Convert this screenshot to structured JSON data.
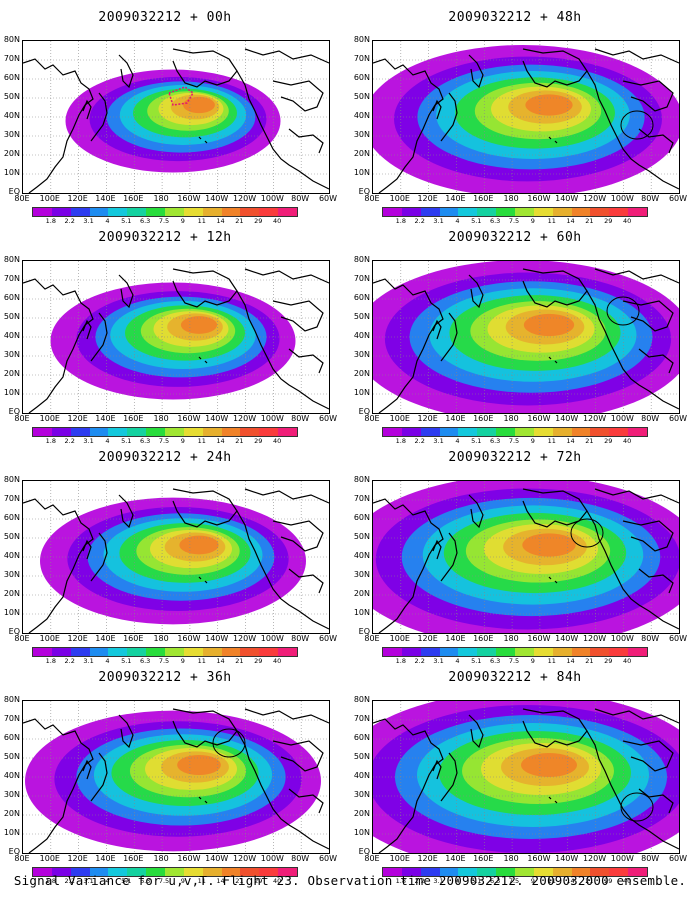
{
  "panels": [
    {
      "title": "2009032212 + 00h",
      "intensity": 0.45
    },
    {
      "title": "2009032212 + 12h",
      "intensity": 0.55
    },
    {
      "title": "2009032212 + 24h",
      "intensity": 0.62
    },
    {
      "title": "2009032212 + 36h",
      "intensity": 0.72
    },
    {
      "title": "2009032212 + 48h",
      "intensity": 0.8
    },
    {
      "title": "2009032212 + 60h",
      "intensity": 0.87
    },
    {
      "title": "2009032212 + 72h",
      "intensity": 0.94
    },
    {
      "title": "2009032212 + 84h",
      "intensity": 1.0
    }
  ],
  "lat_labels": [
    "80N",
    "70N",
    "60N",
    "50N",
    "40N",
    "30N",
    "20N",
    "10N",
    "EQ"
  ],
  "lon_labels": [
    "80E",
    "100E",
    "120E",
    "140E",
    "160E",
    "180",
    "160W",
    "140W",
    "120W",
    "100W",
    "80W",
    "60W"
  ],
  "colorbar": {
    "labels": [
      "1.8",
      "2.2",
      "3.1",
      "4",
      "5.1",
      "6.3",
      "7.5",
      "9",
      "11",
      "14",
      "21",
      "29",
      "40"
    ],
    "colors": [
      "#b400dc",
      "#7a00e6",
      "#2d3cf0",
      "#1e8cf0",
      "#14c8dc",
      "#14d2a0",
      "#28dc3c",
      "#a0e632",
      "#e6dc32",
      "#e6af2d",
      "#f08228",
      "#f0502d",
      "#fa3c3c",
      "#f01e78"
    ]
  },
  "caption": "Signal Variance for u,v,T. Flight 23. Observation time 2009032212. 2009032000 ensemble."
}
